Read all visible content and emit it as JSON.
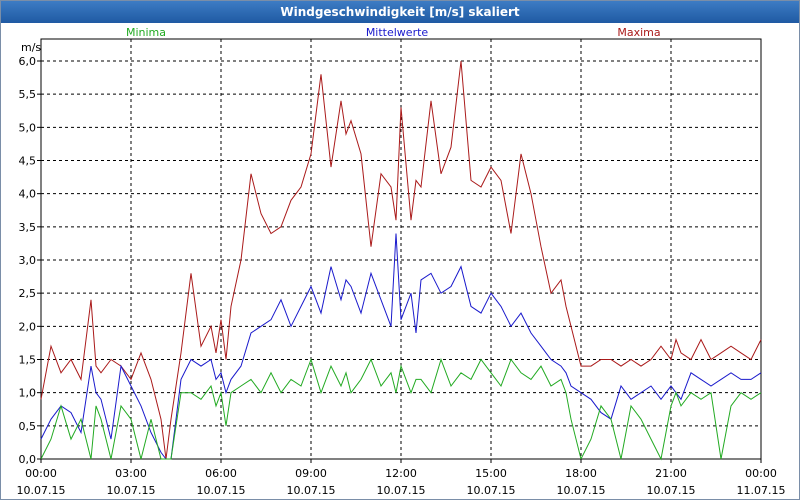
{
  "window": {
    "title": "Windgeschwindigkeit [m/s] skaliert"
  },
  "chart_data": {
    "type": "line",
    "title": "Windgeschwindigkeit [m/s] skaliert",
    "ylabel": "m/s",
    "xlabel": "",
    "grid": true,
    "ylim": [
      0,
      6.0
    ],
    "xlim": [
      0,
      1440
    ],
    "x_unit": "minutes since 10.07.15 00:00",
    "yticks": [
      "0,0",
      "0,5",
      "1,0",
      "1,5",
      "2,0",
      "2,5",
      "3,0",
      "3,5",
      "4,0",
      "4,5",
      "5,0",
      "5,5",
      "6,0"
    ],
    "xticks": [
      {
        "time": "00:00",
        "date": "10.07.15"
      },
      {
        "time": "03:00",
        "date": "10.07.15"
      },
      {
        "time": "06:00",
        "date": "10.07.15"
      },
      {
        "time": "09:00",
        "date": "10.07.15"
      },
      {
        "time": "12:00",
        "date": "10.07.15"
      },
      {
        "time": "15:00",
        "date": "10.07.15"
      },
      {
        "time": "18:00",
        "date": "10.07.15"
      },
      {
        "time": "21:00",
        "date": "10.07.15"
      },
      {
        "time": "00:00",
        "date": "11.07.15"
      }
    ],
    "legend": [
      {
        "name": "Minima",
        "color": "#22aa22",
        "position": "left"
      },
      {
        "name": "Mittelwerte",
        "color": "#1a1acc",
        "position": "center"
      },
      {
        "name": "Maxima",
        "color": "#aa1a1a",
        "position": "right"
      }
    ],
    "series": [
      {
        "name": "Maxima",
        "color": "#aa1a1a",
        "x": [
          0,
          20,
          40,
          60,
          80,
          100,
          110,
          120,
          140,
          160,
          180,
          200,
          220,
          240,
          250,
          260,
          280,
          300,
          320,
          340,
          350,
          360,
          370,
          380,
          400,
          420,
          440,
          460,
          480,
          500,
          520,
          540,
          560,
          580,
          600,
          610,
          620,
          640,
          660,
          680,
          700,
          710,
          720,
          740,
          750,
          760,
          780,
          800,
          820,
          840,
          860,
          880,
          900,
          920,
          940,
          960,
          980,
          1000,
          1020,
          1040,
          1050,
          1060,
          1080,
          1100,
          1120,
          1140,
          1160,
          1180,
          1200,
          1220,
          1240,
          1260,
          1270,
          1280,
          1300,
          1320,
          1340,
          1360,
          1380,
          1400,
          1420,
          1440
        ],
        "values": [
          0.9,
          1.7,
          1.3,
          1.5,
          1.2,
          2.4,
          1.4,
          1.3,
          1.5,
          1.4,
          1.2,
          1.6,
          1.2,
          0.6,
          0.0,
          0.6,
          1.6,
          2.8,
          1.7,
          2.0,
          1.6,
          2.1,
          1.5,
          2.3,
          3.0,
          4.3,
          3.7,
          3.4,
          3.5,
          3.9,
          4.1,
          4.6,
          5.8,
          4.4,
          5.4,
          4.9,
          5.1,
          4.6,
          3.2,
          4.3,
          4.1,
          3.6,
          5.3,
          3.6,
          4.2,
          4.1,
          5.4,
          4.3,
          4.7,
          6.0,
          4.2,
          4.1,
          4.4,
          4.2,
          3.4,
          4.6,
          4.0,
          3.2,
          2.5,
          2.7,
          2.3,
          2.0,
          1.4,
          1.4,
          1.5,
          1.5,
          1.4,
          1.5,
          1.4,
          1.5,
          1.7,
          1.5,
          1.8,
          1.6,
          1.5,
          1.8,
          1.5,
          1.6,
          1.7,
          1.6,
          1.5,
          1.8
        ]
      },
      {
        "name": "Mittelwerte",
        "color": "#1a1acc",
        "x": [
          0,
          20,
          40,
          60,
          80,
          100,
          110,
          120,
          140,
          160,
          180,
          200,
          220,
          240,
          250,
          260,
          280,
          300,
          320,
          340,
          350,
          360,
          370,
          380,
          400,
          420,
          440,
          460,
          480,
          500,
          520,
          540,
          560,
          580,
          600,
          610,
          620,
          640,
          660,
          680,
          700,
          710,
          720,
          740,
          750,
          760,
          780,
          800,
          820,
          840,
          860,
          880,
          900,
          920,
          940,
          960,
          980,
          1000,
          1020,
          1040,
          1050,
          1060,
          1080,
          1100,
          1120,
          1140,
          1160,
          1180,
          1200,
          1220,
          1240,
          1260,
          1270,
          1280,
          1300,
          1320,
          1340,
          1360,
          1380,
          1400,
          1420,
          1440
        ],
        "values": [
          0.3,
          0.6,
          0.8,
          0.7,
          0.4,
          1.4,
          1.0,
          0.9,
          0.3,
          1.4,
          1.1,
          0.8,
          0.4,
          0.1,
          0.0,
          0.0,
          1.2,
          1.5,
          1.4,
          1.5,
          1.2,
          1.3,
          1.0,
          1.2,
          1.4,
          1.9,
          2.0,
          2.1,
          2.4,
          2.0,
          2.3,
          2.6,
          2.2,
          2.9,
          2.4,
          2.7,
          2.6,
          2.2,
          2.8,
          2.4,
          2.0,
          3.4,
          2.1,
          2.5,
          1.9,
          2.7,
          2.8,
          2.5,
          2.6,
          2.9,
          2.3,
          2.2,
          2.5,
          2.3,
          2.0,
          2.2,
          1.9,
          1.7,
          1.5,
          1.4,
          1.3,
          1.1,
          1.0,
          0.9,
          0.7,
          0.6,
          1.1,
          0.9,
          1.0,
          1.1,
          0.9,
          1.1,
          1.0,
          0.9,
          1.3,
          1.2,
          1.1,
          1.2,
          1.3,
          1.2,
          1.2,
          1.3
        ]
      },
      {
        "name": "Minima",
        "color": "#22aa22",
        "x": [
          0,
          20,
          40,
          60,
          80,
          100,
          110,
          120,
          140,
          160,
          180,
          200,
          220,
          240,
          250,
          260,
          280,
          300,
          320,
          340,
          350,
          360,
          370,
          380,
          400,
          420,
          440,
          460,
          480,
          500,
          520,
          540,
          560,
          580,
          600,
          610,
          620,
          640,
          660,
          680,
          700,
          710,
          720,
          740,
          750,
          760,
          780,
          800,
          820,
          840,
          860,
          880,
          900,
          920,
          940,
          960,
          980,
          1000,
          1020,
          1040,
          1050,
          1060,
          1080,
          1100,
          1120,
          1140,
          1160,
          1180,
          1200,
          1220,
          1240,
          1260,
          1270,
          1280,
          1300,
          1320,
          1340,
          1360,
          1380,
          1400,
          1420,
          1440
        ],
        "values": [
          0.0,
          0.3,
          0.8,
          0.3,
          0.6,
          0.0,
          0.8,
          0.6,
          0.0,
          0.8,
          0.6,
          0.0,
          0.6,
          0.0,
          0.0,
          0.0,
          1.0,
          1.0,
          0.9,
          1.1,
          0.8,
          1.0,
          0.5,
          1.0,
          1.1,
          1.2,
          1.0,
          1.3,
          1.0,
          1.2,
          1.1,
          1.5,
          1.0,
          1.4,
          1.1,
          1.3,
          1.0,
          1.2,
          1.5,
          1.1,
          1.3,
          1.0,
          1.4,
          1.0,
          1.2,
          1.2,
          1.0,
          1.5,
          1.1,
          1.3,
          1.2,
          1.5,
          1.3,
          1.1,
          1.5,
          1.3,
          1.2,
          1.4,
          1.1,
          1.2,
          1.0,
          0.6,
          0.0,
          0.3,
          0.8,
          0.6,
          0.0,
          0.8,
          0.6,
          0.3,
          0.0,
          0.8,
          1.0,
          0.8,
          1.0,
          0.9,
          1.0,
          0.0,
          0.8,
          1.0,
          0.9,
          1.0
        ]
      }
    ]
  }
}
